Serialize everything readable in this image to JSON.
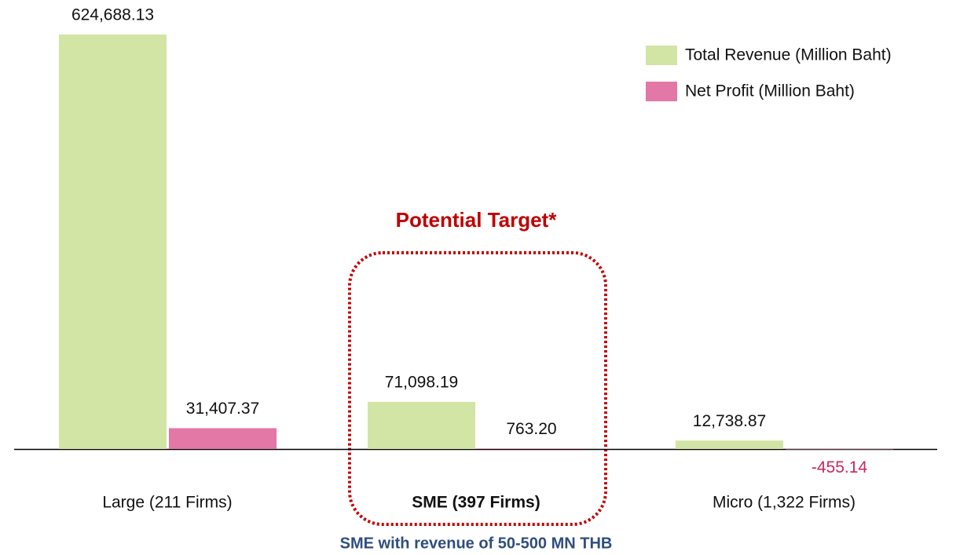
{
  "chart_data": {
    "type": "bar",
    "categories": [
      "Large (211 Firms)",
      "SME (397 Firms)",
      "Micro (1,322 Firms)"
    ],
    "highlight_index": 1,
    "series": [
      {
        "name": "Total Revenue (Million Baht)",
        "color": "#d2e5a4",
        "values": [
          624688.13,
          71098.19,
          12738.87
        ],
        "value_labels": [
          "624,688.13",
          "71,098.19",
          "12,738.87"
        ]
      },
      {
        "name": "Net Profit (Million Baht)",
        "color": "#e377a6",
        "values": [
          31407.37,
          763.2,
          -455.14
        ],
        "value_labels": [
          "31,407.37",
          "763.20",
          "-455.14"
        ]
      }
    ],
    "negative_label_color": "#c8275f",
    "legend": "top-right",
    "annotations": [
      "Potential Target*",
      "SME with revenue of 50-500 MN THB"
    ]
  }
}
